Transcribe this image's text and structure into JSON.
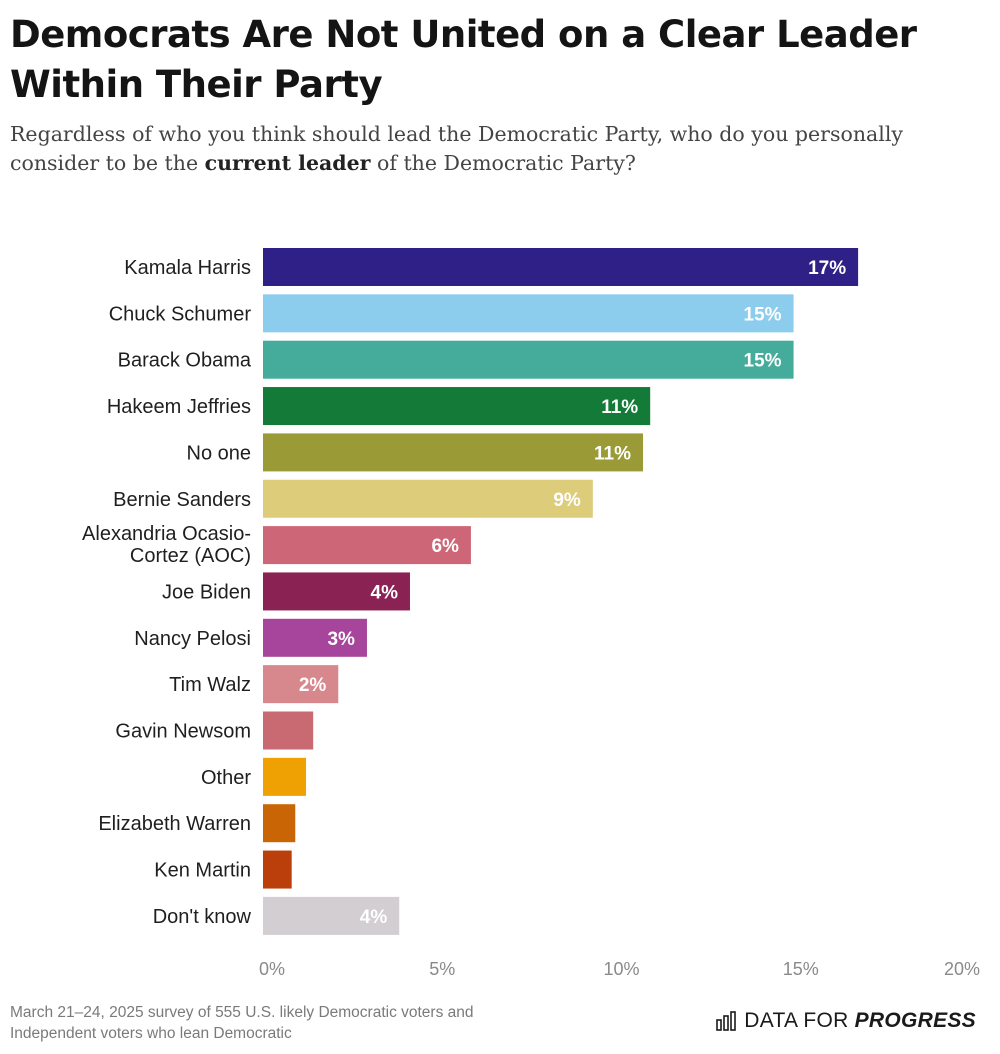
{
  "header": {
    "title": "Democrats Are Not United on a Clear Leader Within Their Party",
    "subtitle_pre": "Regardless of who you think should lead the Democratic Party, who do you personally consider to be the ",
    "subtitle_bold": "current leader",
    "subtitle_post": " of the Democratic Party?"
  },
  "chart_data": {
    "type": "bar",
    "orientation": "horizontal",
    "categories": [
      "Kamala Harris",
      "Chuck Schumer",
      "Barack Obama",
      "Hakeem Jeffries",
      "No one",
      "Bernie Sanders",
      "Alexandria Ocasio-Cortez (AOC)",
      "Joe Biden",
      "Nancy Pelosi",
      "Tim Walz",
      "Gavin Newsom",
      "Other",
      "Elizabeth Warren",
      "Ken Martin",
      "Don't know"
    ],
    "values": [
      16.6,
      14.8,
      14.8,
      10.8,
      10.6,
      9.2,
      5.8,
      4.1,
      2.9,
      2.1,
      1.4,
      1.2,
      0.9,
      0.8,
      3.8
    ],
    "value_labels": [
      "17%",
      "15%",
      "15%",
      "11%",
      "11%",
      "9%",
      "6%",
      "4%",
      "3%",
      "2%",
      "",
      "",
      "",
      "",
      "4%"
    ],
    "colors": [
      "#2e2086",
      "#8ccdee",
      "#45ac9b",
      "#137a37",
      "#9a9a36",
      "#ddcd7a",
      "#cd6677",
      "#8a2253",
      "#a7449b",
      "#d6888c",
      "#c96a72",
      "#efa002",
      "#ca6506",
      "#bb3f0a",
      "#d2ced2"
    ],
    "xlim": [
      0,
      20
    ],
    "xticks": [
      "0%",
      "5%",
      "10%",
      "15%",
      "20%"
    ],
    "xtick_values": [
      0,
      5,
      10,
      15,
      20
    ],
    "grid": false,
    "legend": "none"
  },
  "footer": {
    "note": "March 21–24, 2025 survey of 555 U.S. likely Democratic voters and Independent voters who lean Democratic",
    "brand_light": "DATA FOR",
    "brand_bold": "PROGRESS",
    "brand_icon": "bar-chart-icon"
  }
}
